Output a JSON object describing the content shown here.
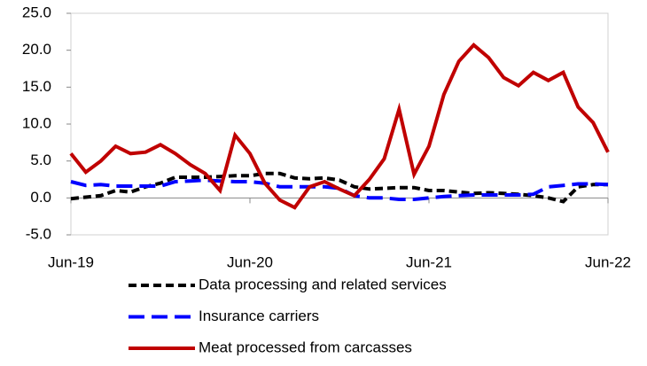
{
  "chart_data": {
    "type": "line",
    "categories": [
      "Jun-19",
      null,
      null,
      null,
      null,
      null,
      null,
      null,
      null,
      null,
      null,
      null,
      "Jun-20",
      null,
      null,
      null,
      null,
      null,
      null,
      null,
      null,
      null,
      null,
      null,
      "Jun-21",
      null,
      null,
      null,
      null,
      null,
      null,
      null,
      null,
      null,
      null,
      null,
      "Jun-22"
    ],
    "series": [
      {
        "name": "Data processing and related services",
        "color": "#000000",
        "dash": "dashed",
        "values": [
          -0.1,
          0.1,
          0.3,
          1.0,
          0.8,
          1.5,
          2.0,
          2.8,
          2.8,
          2.8,
          2.9,
          3.0,
          3.0,
          3.3,
          3.3,
          2.7,
          2.6,
          2.7,
          2.4,
          1.5,
          1.2,
          1.3,
          1.4,
          1.4,
          1.0,
          1.0,
          0.8,
          0.6,
          0.7,
          0.6,
          0.5,
          0.3,
          0.0,
          -0.5,
          1.5,
          1.8,
          1.8
        ]
      },
      {
        "name": "Insurance carriers",
        "color": "#0000ff",
        "dash": "longdash",
        "values": [
          2.2,
          1.7,
          1.8,
          1.6,
          1.6,
          1.6,
          1.6,
          2.2,
          2.3,
          2.4,
          2.3,
          2.2,
          2.2,
          2.0,
          1.5,
          1.5,
          1.5,
          1.5,
          1.3,
          0.3,
          0.0,
          0.0,
          -0.2,
          -0.2,
          0.0,
          0.2,
          0.3,
          0.4,
          0.4,
          0.4,
          0.4,
          0.5,
          1.5,
          1.7,
          1.9,
          1.9,
          1.8
        ]
      },
      {
        "name": "Meat processed from carcasses",
        "color": "#c00000",
        "dash": "solid",
        "values": [
          6.0,
          3.5,
          5.0,
          7.0,
          6.0,
          6.2,
          7.2,
          6.0,
          4.5,
          3.3,
          1.0,
          8.5,
          6.0,
          2.0,
          -0.3,
          -1.3,
          1.5,
          2.2,
          1.2,
          0.3,
          2.5,
          5.3,
          12.0,
          3.2,
          7.0,
          14.0,
          18.5,
          20.7,
          19.0,
          16.3,
          15.2,
          17.0,
          15.9,
          17.0,
          12.3,
          10.2,
          6.2
        ]
      }
    ],
    "ylim": [
      -5,
      25
    ],
    "yticks": [
      {
        "value": -5,
        "label": "-5.0"
      },
      {
        "value": 0,
        "label": "0.0"
      },
      {
        "value": 5,
        "label": "5.0"
      },
      {
        "value": 10,
        "label": "10.0"
      },
      {
        "value": 15,
        "label": "15.0"
      },
      {
        "value": 20,
        "label": "20.0"
      },
      {
        "value": 25,
        "label": "25.0"
      }
    ],
    "grid": false
  }
}
